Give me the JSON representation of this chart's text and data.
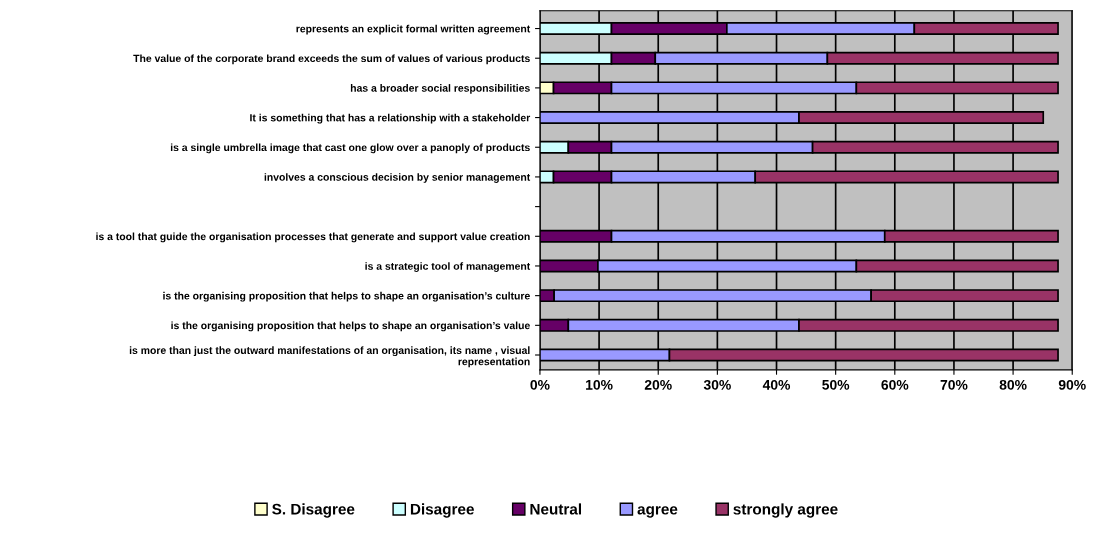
{
  "chart_data": {
    "type": "bar",
    "orientation": "horizontal",
    "stacked": true,
    "categories": [
      "represents an explicit formal written agreement",
      "The value of the corporate brand exceeds the sum of values of various products",
      "has a broader social responsibilities",
      "It is something that has a relationship with a stakeholder",
      "is a single umbrella image that cast one glow over a panoply of products",
      "involves a conscious decision by senior management",
      null,
      "is a tool that guide the organisation processes that generate and support value creation",
      "is a strategic tool of management",
      "is the organising proposition that helps to shape an organisation’s culture",
      "is the organising proposition that helps to shape an organisation’s value",
      "is more than just the outward manifestations of an organisation, its name , visual\nrepresentation"
    ],
    "series": [
      {
        "name": "S. Disagree",
        "color": "#ffffcc",
        "values": [
          0,
          0,
          2.3,
          0,
          0,
          0,
          null,
          0,
          0,
          0,
          0,
          0
        ]
      },
      {
        "name": "Disagree",
        "color": "#ccffff",
        "values": [
          12.1,
          12.1,
          0,
          0,
          4.8,
          2.3,
          null,
          0,
          0,
          0,
          0,
          0
        ]
      },
      {
        "name": "Neutral",
        "color": "#660066",
        "values": [
          19.5,
          7.4,
          9.8,
          0,
          7.3,
          9.8,
          null,
          12.1,
          9.8,
          2.4,
          4.8,
          0
        ]
      },
      {
        "name": "agree",
        "color": "#9999ff",
        "values": [
          31.7,
          29.1,
          41.4,
          43.8,
          34.0,
          24.3,
          null,
          46.2,
          43.7,
          53.6,
          39.0,
          21.9
        ]
      },
      {
        "name": "strongly agree",
        "color": "#993366",
        "values": [
          24.3,
          39.0,
          34.1,
          41.3,
          41.5,
          51.2,
          null,
          29.3,
          34.1,
          31.6,
          43.8,
          65.7
        ]
      }
    ],
    "xlim": [
      0,
      90
    ],
    "xticks": [
      {
        "value": 0,
        "label": "0%"
      },
      {
        "value": 10,
        "label": "10%"
      },
      {
        "value": 20,
        "label": "20%"
      },
      {
        "value": 30,
        "label": "30%"
      },
      {
        "value": 40,
        "label": "40%"
      },
      {
        "value": 50,
        "label": "50%"
      },
      {
        "value": 60,
        "label": "60%"
      },
      {
        "value": 70,
        "label": "70%"
      },
      {
        "value": 80,
        "label": "80%"
      },
      {
        "value": 90,
        "label": "90%"
      }
    ],
    "grid": "x",
    "legend": "bottom"
  }
}
